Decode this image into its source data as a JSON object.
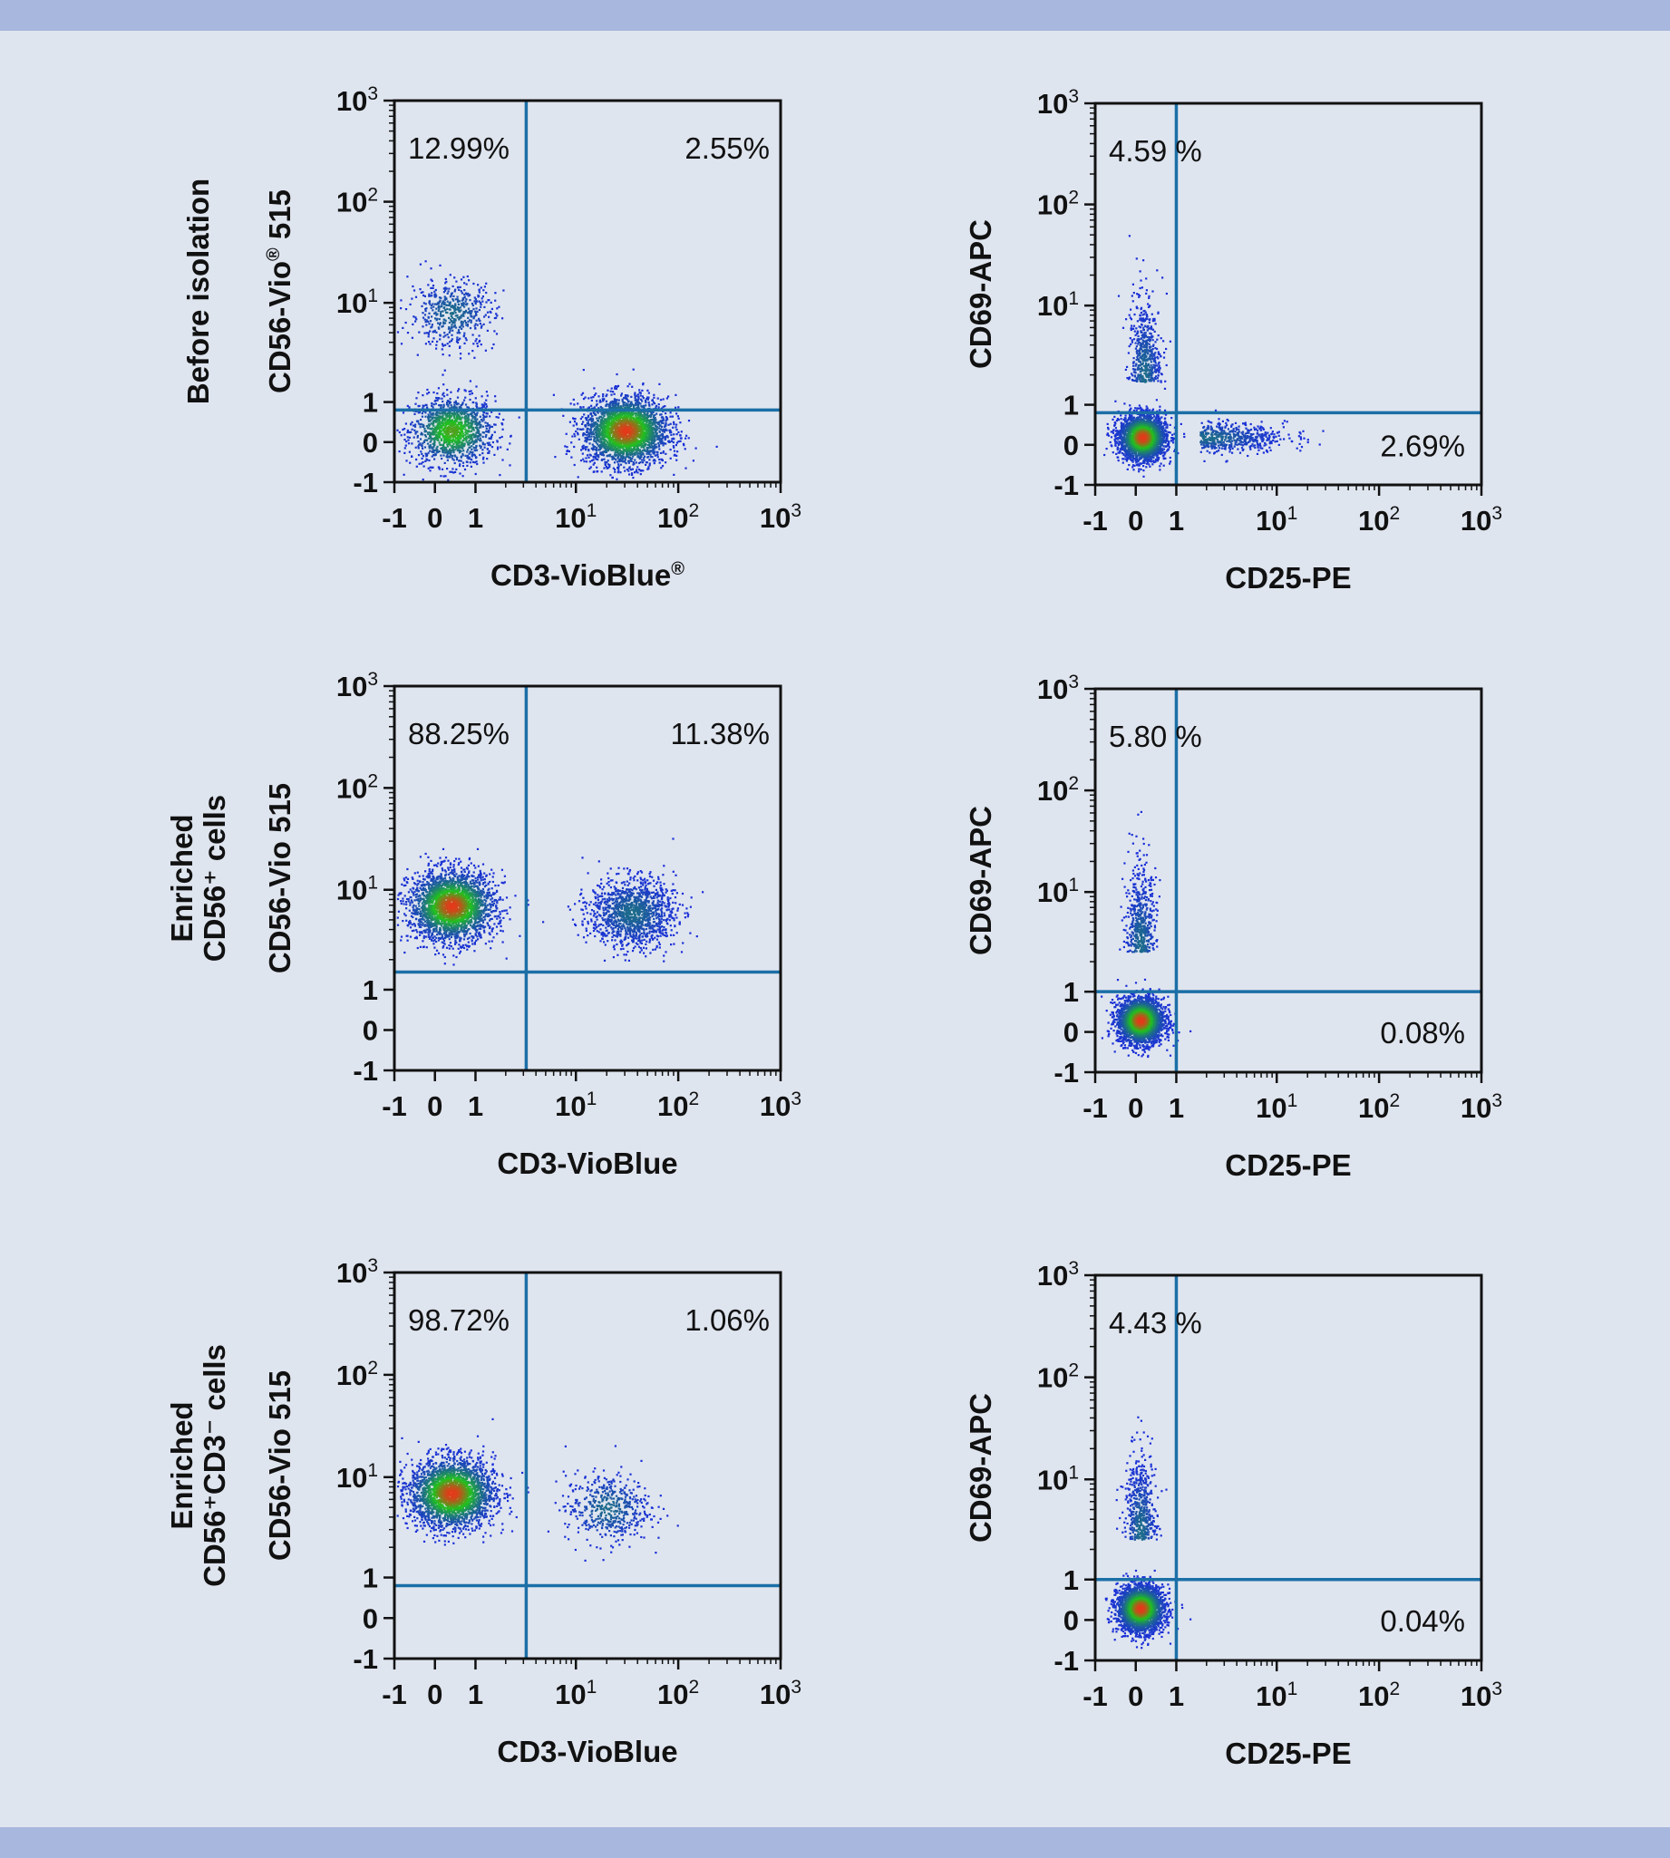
{
  "colors": {
    "background": "#dfe5ef",
    "band": "#a8b7dd",
    "gate": "#1b6fa6",
    "axis": "#111111",
    "text": "#111111",
    "density_low": "#1a2fd8",
    "density_mid": "#21c11e",
    "density_high": "#e43a1a"
  },
  "rows": [
    {
      "label_lines": [
        "Before isolation"
      ]
    },
    {
      "label_lines": [
        "Enriched",
        "CD56⁺ cells"
      ]
    },
    {
      "label_lines": [
        "Enriched",
        "CD56⁺CD3⁻ cells"
      ]
    }
  ],
  "chart_data": [
    {
      "type": "scatter",
      "panel": "row1-left",
      "xlabel": "CD3-VioBlue®",
      "ylabel": "CD56-Vio® 515",
      "x_ticks": [
        "-1",
        "0",
        "1",
        "10¹",
        "10²",
        "10³"
      ],
      "y_ticks": [
        "-1",
        "0",
        "1",
        "10¹",
        "10²",
        "10³"
      ],
      "xlim": [
        "-1",
        "10³"
      ],
      "ylim": [
        "-1",
        "10³"
      ],
      "scale": "biexponential",
      "gate": {
        "x": 3.2,
        "y": 0.8
      },
      "quadrants": {
        "upper_left": "12.99%",
        "upper_right": "2.55%"
      },
      "populations": [
        {
          "cx": 0.4,
          "cy": 0.3,
          "spread": "wide",
          "density": "medium",
          "peak": "green"
        },
        {
          "cx": 30,
          "cy": 0.3,
          "spread": "wide",
          "density": "high",
          "peak": "red"
        },
        {
          "cx": 0.4,
          "cy": 8,
          "spread": "wide",
          "density": "low",
          "peak": "blue"
        }
      ]
    },
    {
      "type": "scatter",
      "panel": "row1-right",
      "xlabel": "CD25-PE",
      "ylabel": "CD69-APC",
      "x_ticks": [
        "-1",
        "0",
        "1",
        "10¹",
        "10²",
        "10³"
      ],
      "y_ticks": [
        "-1",
        "0",
        "1",
        "10¹",
        "10²",
        "10³"
      ],
      "xlim": [
        "-1",
        "10³"
      ],
      "ylim": [
        "-1",
        "10³"
      ],
      "scale": "biexponential",
      "gate": {
        "x": 1,
        "y": 0.8
      },
      "quadrants": {
        "upper_left": "4.59 %",
        "lower_right": "2.69%"
      },
      "populations": [
        {
          "cx": 0.15,
          "cy": 0.2,
          "spread": "tight",
          "density": "high",
          "peak": "red"
        },
        {
          "cx": 0.2,
          "cy": 2,
          "spread": "vertical-tail",
          "density": "low",
          "peak": "blue"
        },
        {
          "cx": 2,
          "cy": 0.2,
          "spread": "horizontal-tail",
          "density": "low",
          "peak": "blue"
        }
      ]
    },
    {
      "type": "scatter",
      "panel": "row2-left",
      "xlabel": "CD3-VioBlue",
      "ylabel": "CD56-Vio 515",
      "x_ticks": [
        "-1",
        "0",
        "1",
        "10¹",
        "10²",
        "10³"
      ],
      "y_ticks": [
        "-1",
        "0",
        "1",
        "10¹",
        "10²",
        "10³"
      ],
      "xlim": [
        "-1",
        "10³"
      ],
      "ylim": [
        "-1",
        "10³"
      ],
      "scale": "biexponential",
      "gate": {
        "x": 3.2,
        "y": 1.5
      },
      "quadrants": {
        "upper_left": "88.25%",
        "upper_right": "11.38%"
      },
      "populations": [
        {
          "cx": 0.4,
          "cy": 7,
          "spread": "wide",
          "density": "high",
          "peak": "red"
        },
        {
          "cx": 35,
          "cy": 6,
          "spread": "wide",
          "density": "medium",
          "peak": "blue"
        }
      ]
    },
    {
      "type": "scatter",
      "panel": "row2-right",
      "xlabel": "CD25-PE",
      "ylabel": "CD69-APC",
      "x_ticks": [
        "-1",
        "0",
        "1",
        "10¹",
        "10²",
        "10³"
      ],
      "y_ticks": [
        "-1",
        "0",
        "1",
        "10¹",
        "10²",
        "10³"
      ],
      "xlim": [
        "-1",
        "10³"
      ],
      "ylim": [
        "-1",
        "10³"
      ],
      "scale": "biexponential",
      "gate": {
        "x": 1,
        "y": 1
      },
      "quadrants": {
        "upper_left": "5.80 %",
        "lower_right": "0.08%"
      },
      "populations": [
        {
          "cx": 0.1,
          "cy": 0.3,
          "spread": "tight",
          "density": "high",
          "peak": "red"
        },
        {
          "cx": 0.1,
          "cy": 3,
          "spread": "vertical-tail",
          "density": "low",
          "peak": "blue"
        }
      ]
    },
    {
      "type": "scatter",
      "panel": "row3-left",
      "xlabel": "CD3-VioBlue",
      "ylabel": "CD56-Vio 515",
      "x_ticks": [
        "-1",
        "0",
        "1",
        "10¹",
        "10²",
        "10³"
      ],
      "y_ticks": [
        "-1",
        "0",
        "1",
        "10¹",
        "10²",
        "10³"
      ],
      "xlim": [
        "-1",
        "10³"
      ],
      "ylim": [
        "-1",
        "10³"
      ],
      "scale": "biexponential",
      "gate": {
        "x": 3.2,
        "y": 0.8
      },
      "quadrants": {
        "upper_left": "98.72%",
        "upper_right": "1.06%"
      },
      "populations": [
        {
          "cx": 0.4,
          "cy": 7,
          "spread": "wide",
          "density": "high",
          "peak": "red"
        },
        {
          "cx": 20,
          "cy": 5,
          "spread": "wide",
          "density": "low",
          "peak": "blue"
        }
      ]
    },
    {
      "type": "scatter",
      "panel": "row3-right",
      "xlabel": "CD25-PE",
      "ylabel": "CD69-APC",
      "x_ticks": [
        "-1",
        "0",
        "1",
        "10¹",
        "10²",
        "10³"
      ],
      "y_ticks": [
        "-1",
        "0",
        "1",
        "10¹",
        "10²",
        "10³"
      ],
      "xlim": [
        "-1",
        "10³"
      ],
      "ylim": [
        "-1",
        "10³"
      ],
      "scale": "biexponential",
      "gate": {
        "x": 1,
        "y": 1
      },
      "quadrants": {
        "upper_left": "4.43 %",
        "lower_right": "0.04%"
      },
      "populations": [
        {
          "cx": 0.1,
          "cy": 0.3,
          "spread": "tight",
          "density": "high",
          "peak": "red"
        },
        {
          "cx": 0.1,
          "cy": 3,
          "spread": "vertical-tail",
          "density": "low",
          "peak": "blue"
        }
      ]
    }
  ]
}
